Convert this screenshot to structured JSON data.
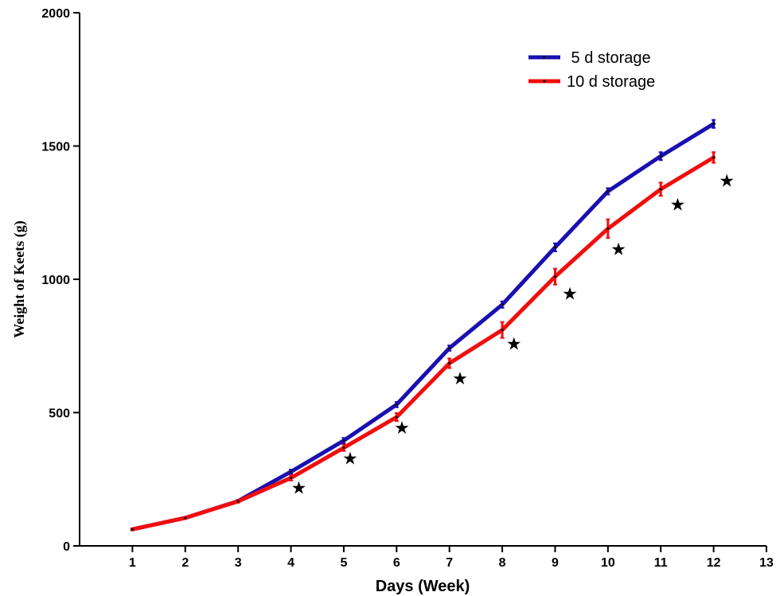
{
  "chart_data": {
    "type": "line",
    "title": "",
    "xlabel": "Days  (Week)",
    "ylabel": "Weight of Keets (g)",
    "xlim": [
      0,
      13
    ],
    "ylim": [
      0,
      2000
    ],
    "x_ticks": [
      1,
      2,
      3,
      4,
      5,
      6,
      7,
      8,
      9,
      10,
      11,
      12,
      13
    ],
    "y_ticks": [
      0,
      500,
      1000,
      1500,
      2000
    ],
    "grid": false,
    "legend_position": "top-right",
    "x": [
      1,
      2,
      3,
      4,
      5,
      6,
      7,
      8,
      9,
      10,
      11,
      12
    ],
    "series": [
      {
        "name": " 5 d storage",
        "color": "#1a0fb0",
        "values": [
          62,
          105,
          168,
          278,
          395,
          530,
          742,
          905,
          1120,
          1330,
          1462,
          1583
        ],
        "errors": [
          3,
          3,
          5,
          8,
          10,
          10,
          10,
          12,
          15,
          12,
          15,
          15
        ]
      },
      {
        "name": "10 d storage",
        "color": "#f20d0d",
        "values": [
          62,
          105,
          167,
          255,
          368,
          483,
          685,
          810,
          1010,
          1190,
          1338,
          1457
        ],
        "errors": [
          3,
          3,
          5,
          10,
          12,
          15,
          18,
          30,
          30,
          35,
          25,
          20
        ]
      }
    ],
    "significance_markers": {
      "symbol": "★",
      "x": [
        4.15,
        5.12,
        6.1,
        7.2,
        8.22,
        9.28,
        10.2,
        11.32,
        12.25
      ],
      "y": [
        220,
        330,
        445,
        630,
        760,
        948,
        1115,
        1282,
        1372
      ]
    }
  }
}
